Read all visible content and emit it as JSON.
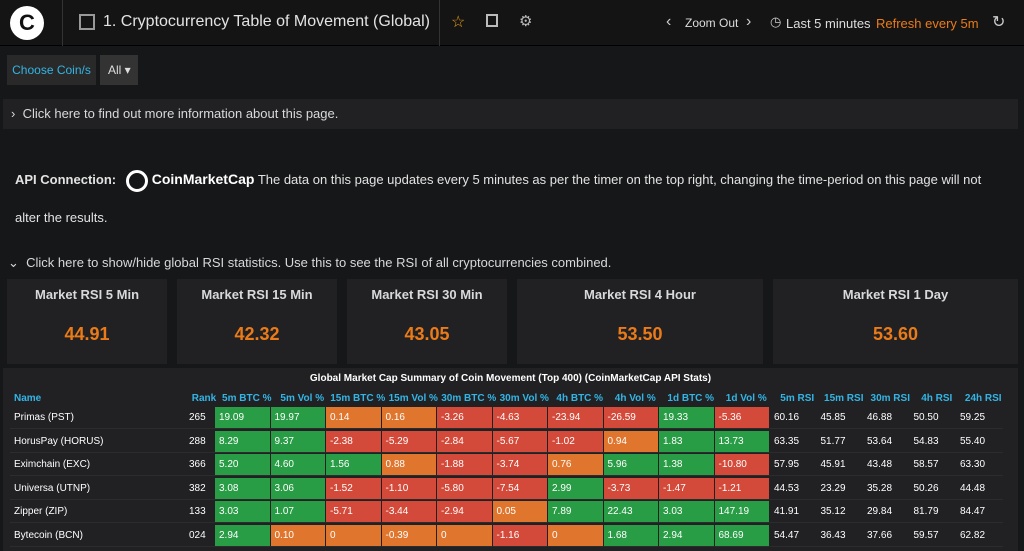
{
  "header": {
    "title": "1. Cryptocurrency Table of Movement (Global)",
    "zoom": "Zoom Out",
    "time_range": "Last 5 minutes",
    "refresh": "Refresh every 5m"
  },
  "filters": {
    "label": "Choose Coin/s",
    "value": "All"
  },
  "info_row": "Click here to find out more information about this page.",
  "api": {
    "label": "API Connection:",
    "brand": "CoinMarketCap",
    "text": "The data on this page updates every 5 minutes as per the timer on the top right, changing the time-period on this page will not alter the results."
  },
  "rsi_row": "Click here to show/hide global RSI statistics. Use this to see the RSI of all cryptocurrencies combined.",
  "stats": [
    {
      "title": "Market RSI 5 Min",
      "value": "44.91"
    },
    {
      "title": "Market RSI 15 Min",
      "value": "42.32"
    },
    {
      "title": "Market RSI 30 Min",
      "value": "43.05"
    },
    {
      "title": "Market RSI 4 Hour",
      "value": "53.50"
    },
    {
      "title": "Market RSI 1 Day",
      "value": "53.60"
    }
  ],
  "table": {
    "title": "Global Market Cap Summary of Coin Movement (Top 400) (CoinMarketCap API Stats)",
    "columns": [
      "Name",
      "Rank",
      "5m BTC %",
      "5m Vol %",
      "15m BTC %",
      "15m Vol %",
      "30m BTC %",
      "30m Vol %",
      "4h BTC %",
      "4h Vol %",
      "1d BTC %",
      "1d Vol %",
      "5m RSI",
      "15m RSI",
      "30m RSI",
      "4h RSI",
      "24h RSI"
    ],
    "thresholds": [
      -1,
      1
    ],
    "colors": [
      "#d44a3a",
      "#e0752d",
      "#299c46"
    ],
    "rows": [
      [
        "Primas (PST)",
        "265",
        "19.09",
        "19.97",
        "0.14",
        "0.16",
        "-3.26",
        "-4.63",
        "-23.94",
        "-26.59",
        "19.33",
        "-5.36",
        "60.16",
        "45.85",
        "46.88",
        "50.50",
        "59.25"
      ],
      [
        "HorusPay (HORUS)",
        "288",
        "8.29",
        "9.37",
        "-2.38",
        "-5.29",
        "-2.84",
        "-5.67",
        "-1.02",
        "0.94",
        "1.83",
        "13.73",
        "63.35",
        "51.77",
        "53.64",
        "54.83",
        "55.40"
      ],
      [
        "Eximchain (EXC)",
        "366",
        "5.20",
        "4.60",
        "1.56",
        "0.88",
        "-1.88",
        "-3.74",
        "0.76",
        "5.96",
        "1.38",
        "-10.80",
        "57.95",
        "45.91",
        "43.48",
        "58.57",
        "63.30"
      ],
      [
        "Universa (UTNP)",
        "382",
        "3.08",
        "3.06",
        "-1.52",
        "-1.10",
        "-5.80",
        "-7.54",
        "2.99",
        "-3.73",
        "-1.47",
        "-1.21",
        "44.53",
        "23.29",
        "35.28",
        "50.26",
        "44.48"
      ],
      [
        "Zipper (ZIP)",
        "133",
        "3.03",
        "1.07",
        "-5.71",
        "-3.44",
        "-2.94",
        "0.05",
        "7.89",
        "22.43",
        "3.03",
        "147.19",
        "41.91",
        "35.12",
        "29.84",
        "81.79",
        "84.47"
      ],
      [
        "Bytecoin (BCN)",
        "024",
        "2.94",
        "0.10",
        "0",
        "-0.39",
        "0",
        "-1.16",
        "0",
        "1.68",
        "2.94",
        "68.69",
        "54.47",
        "36.43",
        "37.66",
        "59.57",
        "62.82"
      ]
    ]
  }
}
